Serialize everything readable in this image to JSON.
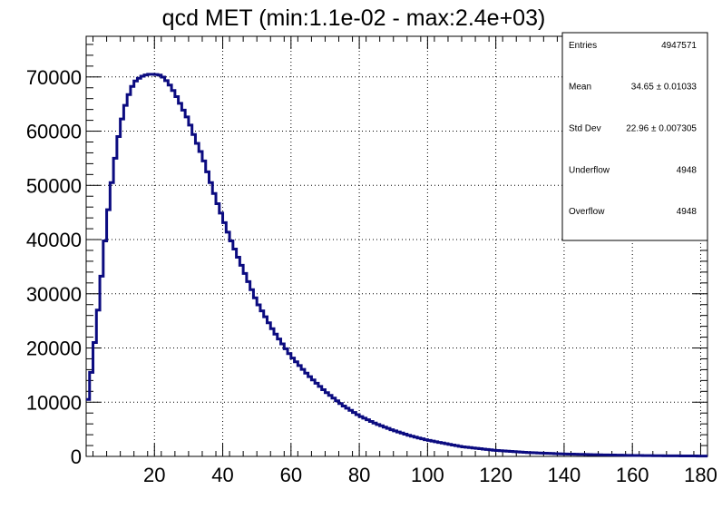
{
  "chart_data": {
    "type": "histogram",
    "title": "qcd MET (min:1.1e-02 - max:2.4e+03)",
    "xlabel": "",
    "ylabel": "",
    "xlim": [
      0,
      182
    ],
    "ylim": [
      0,
      77500
    ],
    "x_ticks": [
      20,
      40,
      60,
      80,
      100,
      120,
      140,
      160,
      180
    ],
    "y_ticks": [
      0,
      10000,
      20000,
      30000,
      40000,
      50000,
      60000,
      70000
    ],
    "grid": true,
    "series": [
      {
        "name": "qcd MET",
        "color": "#0b0b80",
        "x": [
          0,
          2,
          4,
          6,
          8,
          10,
          12,
          14,
          16,
          18,
          20,
          22,
          24,
          26,
          28,
          30,
          32,
          34,
          36,
          38,
          40,
          42,
          44,
          46,
          48,
          50,
          55,
          60,
          65,
          70,
          75,
          80,
          85,
          90,
          95,
          100,
          110,
          120,
          130,
          140,
          150,
          160,
          170,
          180
        ],
        "values": [
          8000,
          18000,
          30000,
          43000,
          53000,
          61000,
          66000,
          69000,
          70000,
          70500,
          70500,
          70300,
          69000,
          67000,
          64500,
          62000,
          58500,
          55500,
          51500,
          47500,
          44000,
          40500,
          37500,
          34500,
          31500,
          28500,
          23000,
          18500,
          15000,
          12000,
          9500,
          7500,
          6000,
          4800,
          3800,
          3000,
          1800,
          1100,
          700,
          450,
          300,
          180,
          110,
          70
        ]
      }
    ],
    "stats_box": {
      "rows": [
        {
          "label": "Entries",
          "value": "4947571"
        },
        {
          "label": "Mean",
          "value": "34.65  ± 0.01033"
        },
        {
          "label": "Std Dev",
          "value": "22.96  ± 0.007305"
        },
        {
          "label": "Underflow",
          "value": "4948"
        },
        {
          "label": "Overflow",
          "value": "4948"
        }
      ]
    }
  }
}
